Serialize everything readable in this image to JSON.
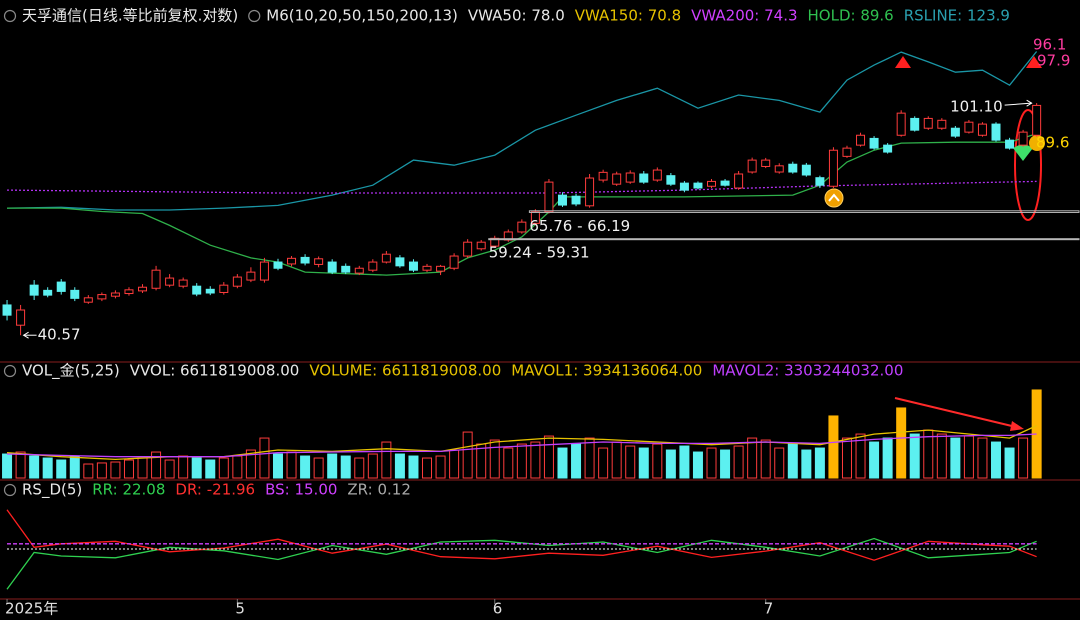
{
  "chart_data": [
    {
      "type": "candlestick",
      "title": "天孚通信(日线.等比前复权.对数)",
      "legend": [
        {
          "text": "M6(10,20,50,150,200,13)",
          "color": "#e8e8e8"
        },
        {
          "text": "VWA50: 78.0",
          "color": "#e8e8e8"
        },
        {
          "text": "VWA150: 70.8",
          "color": "#e6c200"
        },
        {
          "text": "VWA200: 74.3",
          "color": "#d040ff"
        },
        {
          "text": "HOLD: 89.6",
          "color": "#2fc050"
        },
        {
          "text": "RSLINE: 123.9",
          "color": "#2aa0b0"
        }
      ],
      "xlim": [
        -0.52,
        79.2
      ],
      "ylim": [
        36.8,
        151.7
      ],
      "log_scale": true,
      "up_color": "#ff3c3c",
      "down_color": "#5cf0f0",
      "open": [
        45.7,
        42.2,
        49.4,
        48.4,
        50.0,
        48.4,
        46.2,
        46.8,
        47.3,
        47.8,
        48.3,
        48.8,
        49.4,
        49.2,
        49.2,
        48.6,
        48.0,
        49.2,
        50.4,
        50.4,
        54.1,
        53.7,
        55.1,
        53.6,
        54.1,
        53.2,
        51.8,
        52.4,
        54.1,
        55.0,
        54.1,
        52.4,
        52.2,
        52.8,
        55.4,
        57.0,
        57.6,
        59.0,
        60.9,
        63.0,
        65.9,
        70.4,
        70.1,
        67.5,
        74.7,
        73.5,
        74.1,
        76.5,
        74.7,
        76.0,
        73.8,
        73.8,
        72.9,
        74.4,
        72.4,
        77.1,
        78.8,
        77.1,
        79.5,
        79.2,
        75.4,
        72.9,
        82.0,
        85.7,
        88.0,
        85.7,
        89.1,
        95.2,
        91.6,
        91.6,
        91.6,
        90.2,
        89.1,
        93.1,
        87.4,
        85.7,
        89.1
      ],
      "high": [
        46.6,
        45.7,
        50.4,
        49.0,
        50.6,
        49.0,
        47.5,
        48.0,
        48.4,
        49.0,
        49.6,
        53.3,
        51.6,
        50.9,
        49.8,
        49.2,
        50.0,
        51.6,
        53.0,
        55.0,
        54.8,
        55.4,
        55.8,
        55.3,
        54.7,
        53.8,
        53.3,
        54.7,
        56.5,
        55.6,
        54.7,
        53.7,
        53.5,
        56.0,
        59.2,
        59.0,
        60.0,
        61.5,
        64.0,
        66.6,
        75.0,
        71.2,
        70.8,
        76.5,
        77.8,
        77.2,
        77.6,
        77.4,
        78.5,
        76.8,
        74.4,
        74.3,
        75.0,
        75.0,
        77.4,
        81.6,
        81.5,
        79.8,
        80.3,
        79.9,
        76.0,
        85.0,
        85.5,
        90.0,
        88.8,
        86.4,
        98.3,
        96.0,
        96.0,
        95.3,
        92.4,
        94.6,
        93.8,
        93.8,
        88.2,
        91.0,
        101.1
      ],
      "low": [
        43.0,
        40.57,
        46.6,
        47.1,
        47.6,
        46.4,
        45.9,
        46.4,
        46.9,
        47.4,
        47.9,
        48.4,
        49.0,
        48.8,
        47.3,
        47.5,
        47.6,
        48.8,
        50.0,
        49.9,
        52.4,
        53.2,
        53.4,
        53.0,
        51.6,
        51.6,
        51.4,
        52.0,
        53.8,
        52.9,
        52.0,
        52.0,
        51.4,
        52.4,
        55.0,
        56.6,
        57.2,
        58.6,
        60.5,
        62.5,
        65.5,
        67.2,
        67.4,
        67.0,
        74.0,
        73.0,
        73.6,
        73.6,
        74.2,
        73.0,
        71.2,
        72.0,
        72.4,
        72.8,
        71.9,
        76.6,
        78.3,
        76.6,
        76.6,
        75.7,
        72.4,
        72.4,
        81.5,
        85.2,
        84.2,
        82.9,
        88.6,
        90.4,
        91.0,
        91.0,
        88.2,
        89.7,
        88.6,
        86.9,
        84.2,
        85.2,
        88.6
      ],
      "close": [
        43.9,
        44.8,
        47.5,
        47.5,
        48.2,
        46.9,
        47.0,
        47.6,
        47.9,
        48.5,
        49.0,
        52.4,
        50.8,
        50.4,
        47.7,
        47.9,
        49.4,
        51.0,
        52.0,
        54.1,
        52.8,
        54.9,
        53.9,
        54.8,
        52.0,
        52.0,
        52.8,
        54.1,
        55.8,
        53.3,
        52.4,
        53.2,
        53.2,
        55.4,
        58.5,
        58.5,
        59.4,
        60.9,
        63.3,
        65.9,
        74.1,
        67.7,
        68.0,
        75.3,
        77.0,
        76.5,
        76.8,
        74.1,
        77.7,
        73.5,
        71.8,
        72.4,
        74.3,
        73.2,
        76.5,
        80.8,
        80.8,
        79.0,
        77.1,
        76.2,
        73.2,
        84.0,
        84.7,
        89.1,
        84.7,
        83.4,
        97.2,
        90.9,
        95.2,
        94.5,
        88.8,
        93.8,
        93.1,
        87.4,
        84.7,
        90.2,
        100.2
      ],
      "series": [
        {
          "color": "#1a96a6",
          "style": "solid",
          "x": [
            0,
            4,
            8,
            12,
            16,
            20,
            24,
            27,
            30,
            33,
            36,
            39,
            42,
            45,
            48,
            51,
            54,
            57,
            60,
            62,
            64,
            66,
            68,
            70,
            72,
            74,
            76
          ],
          "values": [
            66.9,
            67.1,
            66.4,
            66.4,
            66.9,
            67.6,
            70.4,
            73.2,
            80.8,
            79.2,
            82.4,
            90.9,
            96.4,
            102.2,
            107.2,
            99.1,
            104.4,
            102.2,
            97.6,
            110.7,
            117.4,
            123.6,
            118.9,
            114.2,
            115.1,
            108.5,
            123.9
          ]
        },
        {
          "color": "#2fb04a",
          "style": "solid",
          "x": [
            0,
            4,
            7,
            10,
            12,
            15,
            18,
            20,
            22,
            24,
            28,
            32,
            34,
            36,
            38,
            40,
            41,
            44,
            50,
            58,
            60,
            62,
            64,
            66,
            70,
            74,
            76
          ],
          "values": [
            66.9,
            66.9,
            66.0,
            65.5,
            62.5,
            57.8,
            55.0,
            54.1,
            52.0,
            51.8,
            51.4,
            52.0,
            55.0,
            56.7,
            59.7,
            65.9,
            69.9,
            69.9,
            69.9,
            70.4,
            73.2,
            80.2,
            84.0,
            86.4,
            86.7,
            86.7,
            89.6
          ]
        },
        {
          "color": "#b030f0",
          "style": "dotted",
          "x": [
            0,
            20,
            40,
            50,
            60,
            70,
            76
          ],
          "values": [
            71.8,
            71.0,
            71.0,
            71.8,
            73.0,
            73.8,
            74.3
          ]
        }
      ],
      "levels": [
        {
          "low": 65.76,
          "high": 66.19,
          "label": "65.76 - 66.19"
        },
        {
          "low": 59.24,
          "high": 59.31,
          "label": "59.24 - 59.31"
        }
      ],
      "high_label": {
        "value": 101.1,
        "label": "101.10"
      },
      "low_label": {
        "value": 40.57,
        "label": "40.57"
      },
      "side_labels": [
        {
          "text": "96.1",
          "color": "#ff3ca0"
        },
        {
          "text": "97.9",
          "color": "#ff3ca0"
        },
        {
          "text": "89.6",
          "color": "#ffd400"
        }
      ]
    },
    {
      "type": "bar",
      "title": "VOL_金(5,25)",
      "legend": [
        {
          "text": "VVOL: 6611819008.00",
          "color": "#e8e8e8"
        },
        {
          "text": "VOLUME: 6611819008.00",
          "color": "#e6c200"
        },
        {
          "text": "MAVOL1: 3934136064.00",
          "color": "#e6c200"
        },
        {
          "text": "MAVOL2: 3303244032.00",
          "color": "#c040ff"
        }
      ],
      "xlim": [
        -0.52,
        79.2
      ],
      "ylim": [
        0,
        7360000000.0
      ],
      "hollow_color": "#ff3c3c",
      "values": [
        1800000000.0,
        1950000000.0,
        1650000000.0,
        1500000000.0,
        1350000000.0,
        1650000000.0,
        1050000000.0,
        1130000000.0,
        1200000000.0,
        1350000000.0,
        1500000000.0,
        1950000000.0,
        1350000000.0,
        1650000000.0,
        1500000000.0,
        1350000000.0,
        1500000000.0,
        1650000000.0,
        2100000000.0,
        3000000000.0,
        1800000000.0,
        1950000000.0,
        1650000000.0,
        1500000000.0,
        1800000000.0,
        1650000000.0,
        1500000000.0,
        1800000000.0,
        2700000000.0,
        1800000000.0,
        1650000000.0,
        1500000000.0,
        1650000000.0,
        2100000000.0,
        3450000000.0,
        2550000000.0,
        2850000000.0,
        2250000000.0,
        2550000000.0,
        2700000000.0,
        3150000000.0,
        2250000000.0,
        2550000000.0,
        3000000000.0,
        2250000000.0,
        2700000000.0,
        2400000000.0,
        2250000000.0,
        2550000000.0,
        2100000000.0,
        2400000000.0,
        1950000000.0,
        2250000000.0,
        2100000000.0,
        2400000000.0,
        3000000000.0,
        2850000000.0,
        2250000000.0,
        2550000000.0,
        2100000000.0,
        2250000000.0,
        4660000000.0,
        3000000000.0,
        3300000000.0,
        2700000000.0,
        3000000000.0,
        5260000000.0,
        3300000000.0,
        3600000000.0,
        3300000000.0,
        3000000000.0,
        3150000000.0,
        3000000000.0,
        2700000000.0,
        2250000000.0,
        3000000000.0,
        6611819008
      ],
      "colors": [
        "#5cf0f0",
        "#ff3c3c",
        "#5cf0f0",
        "#5cf0f0",
        "#5cf0f0",
        "#5cf0f0",
        "#ff3c3c",
        "#ff3c3c",
        "#ff3c3c",
        "#ff3c3c",
        "#ff3c3c",
        "#ff3c3c",
        "#ff3c3c",
        "#ff3c3c",
        "#5cf0f0",
        "#5cf0f0",
        "#ff3c3c",
        "#ff3c3c",
        "#ff3c3c",
        "#ff3c3c",
        "#5cf0f0",
        "#ff3c3c",
        "#5cf0f0",
        "#ff3c3c",
        "#5cf0f0",
        "#5cf0f0",
        "#ff3c3c",
        "#ff3c3c",
        "#ff3c3c",
        "#5cf0f0",
        "#5cf0f0",
        "#ff3c3c",
        "#ff3c3c",
        "#ff3c3c",
        "#ff3c3c",
        "#ff3c3c",
        "#ff3c3c",
        "#ff3c3c",
        "#ff3c3c",
        "#ff3c3c",
        "#ff3c3c",
        "#5cf0f0",
        "#5cf0f0",
        "#ff3c3c",
        "#ff3c3c",
        "#ff3c3c",
        "#ff3c3c",
        "#5cf0f0",
        "#ff3c3c",
        "#5cf0f0",
        "#5cf0f0",
        "#5cf0f0",
        "#ff3c3c",
        "#5cf0f0",
        "#ff3c3c",
        "#ff3c3c",
        "#ff3c3c",
        "#ff3c3c",
        "#5cf0f0",
        "#5cf0f0",
        "#5cf0f0",
        "#ffb400",
        "#ff3c3c",
        "#ff3c3c",
        "#5cf0f0",
        "#5cf0f0",
        "#ffb400",
        "#5cf0f0",
        "#ff3c3c",
        "#ff3c3c",
        "#5cf0f0",
        "#ff3c3c",
        "#ff3c3c",
        "#5cf0f0",
        "#5cf0f0",
        "#ff3c3c",
        "#ffb400"
      ],
      "series": [
        {
          "color": "#e6c200",
          "style": "solid",
          "x": [
            0,
            4,
            8,
            12,
            16,
            20,
            24,
            28,
            32,
            36,
            40,
            44,
            48,
            52,
            56,
            60,
            64,
            68,
            72,
            74,
            76
          ],
          "values": [
            1900000000.0,
            1600000000.0,
            1400000000.0,
            1600000000.0,
            1600000000.0,
            2100000000.0,
            2000000000.0,
            2200000000.0,
            2000000000.0,
            2700000000.0,
            3000000000.0,
            2900000000.0,
            2700000000.0,
            2500000000.0,
            2700000000.0,
            2500000000.0,
            3300000000.0,
            3600000000.0,
            3200000000.0,
            3000000000.0,
            3934136064
          ]
        },
        {
          "color": "#c040ff",
          "style": "solid",
          "x": [
            0,
            4,
            8,
            12,
            16,
            20,
            24,
            28,
            32,
            36,
            40,
            44,
            48,
            52,
            56,
            60,
            64,
            68,
            72,
            74,
            76
          ],
          "values": [
            1800000000.0,
            1700000000.0,
            1600000000.0,
            1600000000.0,
            1600000000.0,
            1900000000.0,
            1950000000.0,
            2000000000.0,
            2000000000.0,
            2300000000.0,
            2500000000.0,
            2700000000.0,
            2600000000.0,
            2600000000.0,
            2700000000.0,
            2600000000.0,
            2900000000.0,
            3100000000.0,
            3200000000.0,
            3200000000.0,
            3303244032
          ]
        }
      ]
    },
    {
      "type": "line",
      "title": "RS_D(5)",
      "legend": [
        {
          "text": "RR: 22.08",
          "color": "#2fd050"
        },
        {
          "text": "DR: -21.96",
          "color": "#ff3030"
        },
        {
          "text": "BS: 15.00",
          "color": "#d040ff"
        },
        {
          "text": "ZR: 0.12",
          "color": "#aaaaaa"
        }
      ],
      "xlim": [
        -0.52,
        79.2
      ],
      "ylim": [
        -140,
        140
      ],
      "xticks": [
        {
          "value": 0,
          "label": "2025年"
        },
        {
          "value": 17,
          "label": "5"
        },
        {
          "value": 36,
          "label": "6"
        },
        {
          "value": 56,
          "label": "7"
        }
      ],
      "series": [
        {
          "color": "#2fd050",
          "style": "solid",
          "x": [
            0,
            2,
            4,
            8,
            12,
            16,
            20,
            24,
            28,
            32,
            36,
            40,
            44,
            48,
            52,
            56,
            60,
            64,
            68,
            72,
            74,
            76
          ],
          "values": [
            -115,
            -10,
            -20,
            -25,
            5,
            -5,
            -30,
            10,
            -15,
            20,
            25,
            10,
            20,
            -10,
            25,
            5,
            -20,
            30,
            -25,
            -15,
            -10,
            22.08
          ]
        },
        {
          "color": "#ff2020",
          "style": "solid",
          "x": [
            0,
            2,
            4,
            8,
            12,
            16,
            20,
            24,
            28,
            32,
            36,
            40,
            44,
            48,
            52,
            56,
            60,
            64,
            68,
            72,
            74,
            76
          ],
          "values": [
            112,
            5,
            15,
            22,
            -8,
            3,
            28,
            -12,
            14,
            -22,
            -28,
            -12,
            -18,
            8,
            -24,
            -6,
            18,
            -32,
            22,
            12,
            8,
            -21.96
          ]
        },
        {
          "color": "#d040ff",
          "style": "dashed",
          "x": [
            0,
            76
          ],
          "values": [
            15,
            15
          ]
        },
        {
          "color": "#cccccc",
          "style": "dotted",
          "x": [
            0,
            76
          ],
          "values": [
            0.12,
            0.12
          ]
        }
      ]
    }
  ]
}
